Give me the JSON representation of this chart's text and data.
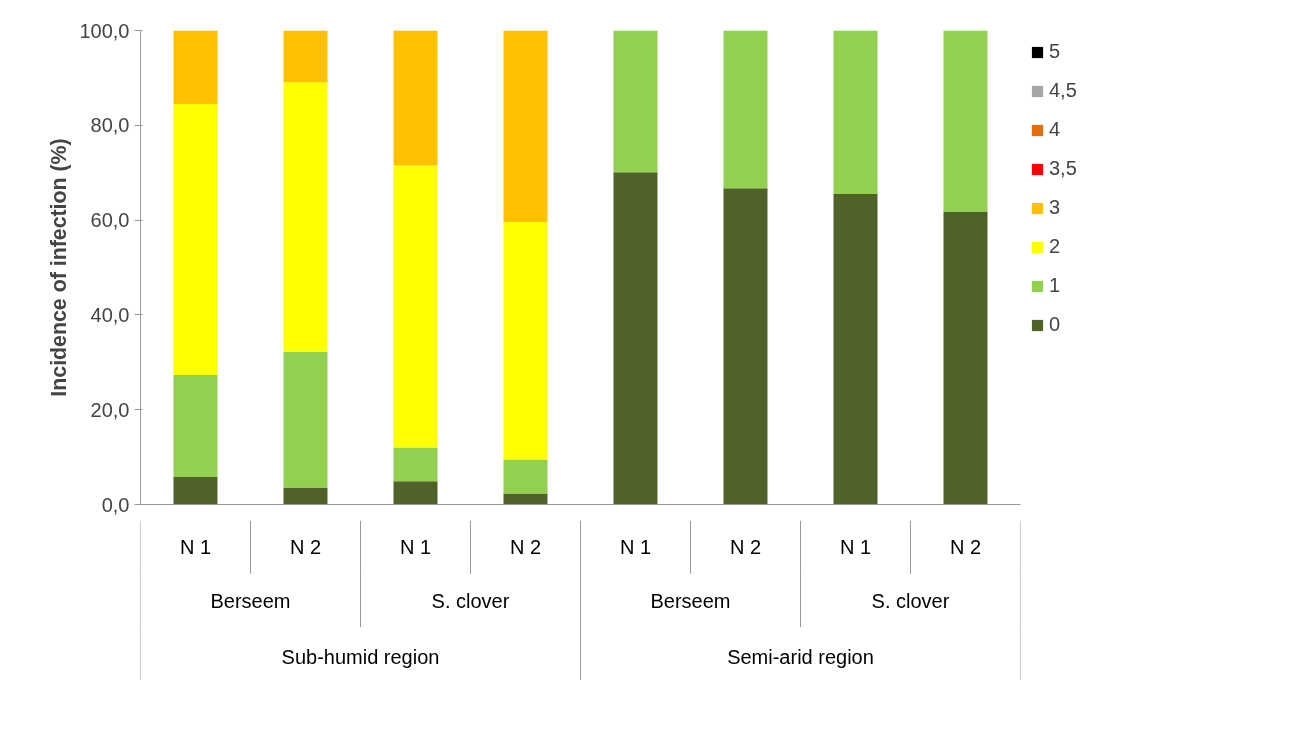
{
  "chart_data": {
    "type": "bar",
    "stacked": true,
    "ylabel": "Incidence of infection (%)",
    "categories": [
      "N 1",
      "N 2",
      "N 1",
      "N 2",
      "N 1",
      "N 2",
      "N 1",
      "N 2"
    ],
    "series": [
      {
        "name": "0",
        "color": "#4f6228",
        "values": [
          5.8,
          3.6,
          4.9,
          2.3,
          70.1,
          66.7,
          65.5,
          61.8
        ]
      },
      {
        "name": "1",
        "color": "#92d050",
        "values": [
          21.5,
          28.6,
          7.1,
          7.2,
          29.9,
          33.3,
          34.5,
          38.2
        ]
      },
      {
        "name": "2",
        "color": "#ffff00",
        "values": [
          57.2,
          56.9,
          59.5,
          50.1,
          0,
          0,
          0,
          0
        ]
      },
      {
        "name": "3",
        "color": "#ffc000",
        "values": [
          15.5,
          10.9,
          28.5,
          40.4,
          0,
          0,
          0,
          0
        ]
      },
      {
        "name": "3,5",
        "color": "#ff0000",
        "values": [
          0,
          0,
          0,
          0,
          0,
          0,
          0,
          0
        ]
      },
      {
        "name": "4",
        "color": "#e46c0a",
        "values": [
          0,
          0,
          0,
          0,
          0,
          0,
          0,
          0
        ]
      },
      {
        "name": "4,5",
        "color": "#a6a6a6",
        "values": [
          0,
          0,
          0,
          0,
          0,
          0,
          0,
          0
        ]
      },
      {
        "name": "5",
        "color": "#000000",
        "values": [
          0,
          0,
          0,
          0,
          0,
          0,
          0,
          0
        ]
      }
    ],
    "ylim": [
      0,
      100
    ],
    "yticks": [
      {
        "value": 0,
        "label": "0,0"
      },
      {
        "value": 20,
        "label": "20,0"
      },
      {
        "value": 40,
        "label": "40,0"
      },
      {
        "value": 60,
        "label": "60,0"
      },
      {
        "value": 80,
        "label": "80,0"
      },
      {
        "value": 100,
        "label": "100,0"
      }
    ],
    "annotations": [
      "Berseem",
      "S. clover",
      "Berseem",
      "S. clover",
      "Sub-humid region",
      "Semi-arid region"
    ],
    "grid": false,
    "legend": "right"
  }
}
